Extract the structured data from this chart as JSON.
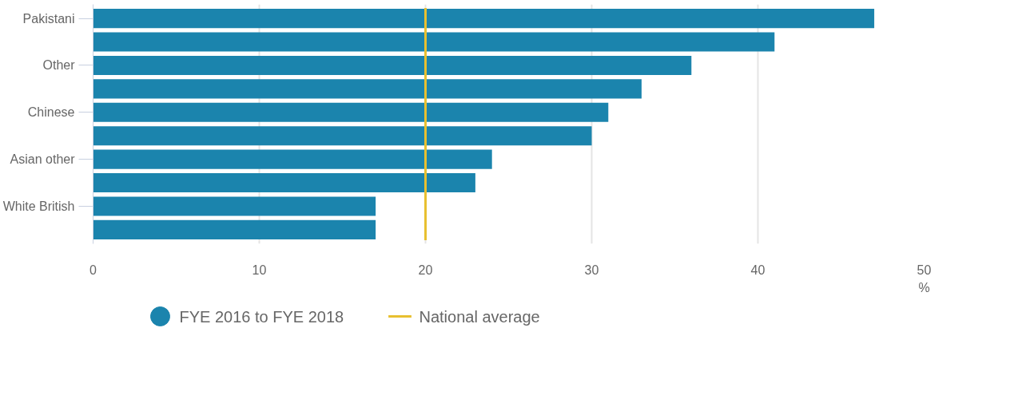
{
  "chart_data": {
    "type": "bar",
    "orientation": "horizontal",
    "categories": [
      "Pakistani",
      null,
      "Other",
      null,
      "Chinese",
      null,
      "Asian other",
      null,
      "White British",
      null
    ],
    "series": [
      {
        "name": "FYE 2016 to FYE 2018",
        "color": "#1b84ad",
        "values": [
          47,
          41,
          36,
          33,
          31,
          30,
          24,
          23,
          17,
          17
        ]
      }
    ],
    "xlabel": "%",
    "xlim": [
      0,
      50
    ],
    "xticks": [
      0,
      10,
      20,
      30,
      40,
      50
    ],
    "grid": "x",
    "legend": "bottom",
    "ref_lines": [
      {
        "axis": "x",
        "value": 20,
        "label": "National average",
        "color": "#e8c030"
      }
    ]
  }
}
